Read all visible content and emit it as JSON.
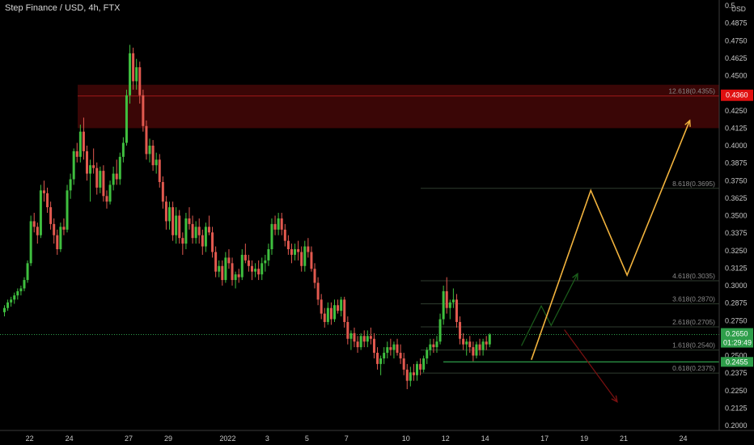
{
  "header": {
    "title": "Step Finance / USD, 4h, FTX"
  },
  "price_axis": {
    "currency": "USD"
  },
  "colors": {
    "up": "#3fbf3f",
    "down": "#e2594f",
    "zone": "#3a0606",
    "forecast": "#f2b33d",
    "red_arrow": "#7a1111",
    "green_arrow": "#1b5e1b",
    "price_badge": "#2e9e4a",
    "target_badge": "#e01010"
  },
  "badges": {
    "target": "0.4360",
    "current_price": "0.2650",
    "countdown": "01:29:49",
    "support": "0.2455"
  },
  "chart_data": {
    "type": "candlestick",
    "title": "Step Finance / USD, 4h, FTX",
    "ylim": [
      0.2,
      0.5
    ],
    "y_ticks": [
      "0.5",
      "0.4875",
      "0.4750",
      "0.4625",
      "0.4500",
      "0.4375",
      "0.4250",
      "0.4125",
      "0.4000",
      "0.3875",
      "0.3750",
      "0.3625",
      "0.3500",
      "0.3375",
      "0.3250",
      "0.3125",
      "0.3000",
      "0.2875",
      "0.2750",
      "0.2625",
      "0.2500",
      "0.2375",
      "0.2250",
      "0.2125",
      "0.2000"
    ],
    "x_ticks": [
      {
        "label": "22",
        "i": 8
      },
      {
        "label": "24",
        "i": 20
      },
      {
        "label": "27",
        "i": 38
      },
      {
        "label": "29",
        "i": 50
      },
      {
        "label": "2022",
        "i": 68
      },
      {
        "label": "3",
        "i": 80
      },
      {
        "label": "5",
        "i": 92
      },
      {
        "label": "7",
        "i": 104
      },
      {
        "label": "10",
        "i": 122
      },
      {
        "label": "12",
        "i": 134
      },
      {
        "label": "14",
        "i": 146
      },
      {
        "label": "17",
        "i": 164
      },
      {
        "label": "19",
        "i": 176
      },
      {
        "label": "21",
        "i": 188
      },
      {
        "label": "24",
        "i": 206
      }
    ],
    "candles": [
      [
        0.281,
        0.286,
        0.278,
        0.284
      ],
      [
        0.284,
        0.29,
        0.282,
        0.288
      ],
      [
        0.288,
        0.292,
        0.285,
        0.29
      ],
      [
        0.29,
        0.295,
        0.287,
        0.293
      ],
      [
        0.293,
        0.298,
        0.29,
        0.296
      ],
      [
        0.296,
        0.3,
        0.293,
        0.298
      ],
      [
        0.298,
        0.306,
        0.296,
        0.304
      ],
      [
        0.304,
        0.318,
        0.302,
        0.316
      ],
      [
        0.316,
        0.35,
        0.314,
        0.346
      ],
      [
        0.346,
        0.352,
        0.338,
        0.342
      ],
      [
        0.342,
        0.345,
        0.33,
        0.336
      ],
      [
        0.336,
        0.372,
        0.334,
        0.368
      ],
      [
        0.368,
        0.375,
        0.36,
        0.366
      ],
      [
        0.366,
        0.37,
        0.352,
        0.356
      ],
      [
        0.356,
        0.36,
        0.34,
        0.344
      ],
      [
        0.344,
        0.348,
        0.33,
        0.336
      ],
      [
        0.336,
        0.34,
        0.322,
        0.326
      ],
      [
        0.326,
        0.345,
        0.324,
        0.342
      ],
      [
        0.342,
        0.348,
        0.336,
        0.34
      ],
      [
        0.34,
        0.372,
        0.338,
        0.368
      ],
      [
        0.368,
        0.38,
        0.362,
        0.376
      ],
      [
        0.376,
        0.398,
        0.372,
        0.396
      ],
      [
        0.396,
        0.402,
        0.388,
        0.392
      ],
      [
        0.392,
        0.415,
        0.388,
        0.41
      ],
      [
        0.41,
        0.42,
        0.39,
        0.396
      ],
      [
        0.396,
        0.4,
        0.375,
        0.38
      ],
      [
        0.38,
        0.39,
        0.36,
        0.386
      ],
      [
        0.386,
        0.398,
        0.38,
        0.384
      ],
      [
        0.384,
        0.388,
        0.365,
        0.37
      ],
      [
        0.37,
        0.385,
        0.366,
        0.382
      ],
      [
        0.382,
        0.386,
        0.36,
        0.364
      ],
      [
        0.364,
        0.368,
        0.355,
        0.36
      ],
      [
        0.36,
        0.375,
        0.358,
        0.372
      ],
      [
        0.372,
        0.385,
        0.368,
        0.38
      ],
      [
        0.38,
        0.39,
        0.372,
        0.376
      ],
      [
        0.376,
        0.395,
        0.372,
        0.392
      ],
      [
        0.392,
        0.406,
        0.388,
        0.402
      ],
      [
        0.402,
        0.44,
        0.4,
        0.436
      ],
      [
        0.436,
        0.472,
        0.43,
        0.466
      ],
      [
        0.466,
        0.47,
        0.44,
        0.446
      ],
      [
        0.446,
        0.462,
        0.44,
        0.456
      ],
      [
        0.456,
        0.46,
        0.43,
        0.436
      ],
      [
        0.436,
        0.44,
        0.41,
        0.414
      ],
      [
        0.414,
        0.418,
        0.39,
        0.394
      ],
      [
        0.394,
        0.405,
        0.388,
        0.4
      ],
      [
        0.4,
        0.404,
        0.382,
        0.386
      ],
      [
        0.386,
        0.395,
        0.38,
        0.39
      ],
      [
        0.39,
        0.394,
        0.37,
        0.374
      ],
      [
        0.374,
        0.378,
        0.355,
        0.36
      ],
      [
        0.36,
        0.364,
        0.34,
        0.346
      ],
      [
        0.346,
        0.36,
        0.34,
        0.356
      ],
      [
        0.356,
        0.36,
        0.332,
        0.336
      ],
      [
        0.336,
        0.356,
        0.33,
        0.35
      ],
      [
        0.35,
        0.354,
        0.33,
        0.334
      ],
      [
        0.334,
        0.338,
        0.322,
        0.33
      ],
      [
        0.33,
        0.352,
        0.326,
        0.348
      ],
      [
        0.348,
        0.356,
        0.34,
        0.344
      ],
      [
        0.344,
        0.35,
        0.33,
        0.334
      ],
      [
        0.334,
        0.346,
        0.33,
        0.342
      ],
      [
        0.342,
        0.348,
        0.33,
        0.336
      ],
      [
        0.336,
        0.34,
        0.322,
        0.328
      ],
      [
        0.328,
        0.345,
        0.324,
        0.342
      ],
      [
        0.342,
        0.35,
        0.336,
        0.338
      ],
      [
        0.338,
        0.342,
        0.32,
        0.324
      ],
      [
        0.324,
        0.328,
        0.306,
        0.31
      ],
      [
        0.31,
        0.318,
        0.306,
        0.314
      ],
      [
        0.314,
        0.318,
        0.3,
        0.304
      ],
      [
        0.304,
        0.324,
        0.302,
        0.32
      ],
      [
        0.32,
        0.326,
        0.312,
        0.316
      ],
      [
        0.316,
        0.32,
        0.3,
        0.304
      ],
      [
        0.304,
        0.31,
        0.298,
        0.308
      ],
      [
        0.308,
        0.312,
        0.302,
        0.306
      ],
      [
        0.306,
        0.326,
        0.304,
        0.322
      ],
      [
        0.322,
        0.33,
        0.316,
        0.318
      ],
      [
        0.318,
        0.322,
        0.31,
        0.314
      ],
      [
        0.314,
        0.318,
        0.304,
        0.31
      ],
      [
        0.31,
        0.316,
        0.306,
        0.312
      ],
      [
        0.312,
        0.318,
        0.304,
        0.308
      ],
      [
        0.308,
        0.32,
        0.304,
        0.316
      ],
      [
        0.316,
        0.322,
        0.31,
        0.318
      ],
      [
        0.318,
        0.33,
        0.314,
        0.326
      ],
      [
        0.326,
        0.348,
        0.322,
        0.344
      ],
      [
        0.344,
        0.35,
        0.336,
        0.34
      ],
      [
        0.34,
        0.352,
        0.336,
        0.348
      ],
      [
        0.348,
        0.352,
        0.336,
        0.34
      ],
      [
        0.34,
        0.344,
        0.328,
        0.332
      ],
      [
        0.332,
        0.336,
        0.322,
        0.326
      ],
      [
        0.326,
        0.33,
        0.316,
        0.322
      ],
      [
        0.322,
        0.33,
        0.318,
        0.326
      ],
      [
        0.326,
        0.332,
        0.318,
        0.324
      ],
      [
        0.324,
        0.328,
        0.31,
        0.314
      ],
      [
        0.314,
        0.332,
        0.31,
        0.328
      ],
      [
        0.328,
        0.334,
        0.32,
        0.324
      ],
      [
        0.324,
        0.328,
        0.31,
        0.312
      ],
      [
        0.312,
        0.316,
        0.298,
        0.302
      ],
      [
        0.302,
        0.306,
        0.286,
        0.29
      ],
      [
        0.29,
        0.294,
        0.276,
        0.28
      ],
      [
        0.28,
        0.284,
        0.27,
        0.274
      ],
      [
        0.274,
        0.288,
        0.272,
        0.284
      ],
      [
        0.284,
        0.288,
        0.272,
        0.276
      ],
      [
        0.276,
        0.29,
        0.274,
        0.286
      ],
      [
        0.286,
        0.29,
        0.28,
        0.282
      ],
      [
        0.282,
        0.292,
        0.278,
        0.29
      ],
      [
        0.29,
        0.292,
        0.27,
        0.274
      ],
      [
        0.274,
        0.278,
        0.258,
        0.262
      ],
      [
        0.262,
        0.268,
        0.254,
        0.266
      ],
      [
        0.266,
        0.27,
        0.256,
        0.26
      ],
      [
        0.26,
        0.264,
        0.252,
        0.256
      ],
      [
        0.256,
        0.266,
        0.254,
        0.264
      ],
      [
        0.264,
        0.268,
        0.256,
        0.26
      ],
      [
        0.26,
        0.268,
        0.256,
        0.264
      ],
      [
        0.264,
        0.27,
        0.258,
        0.262
      ],
      [
        0.262,
        0.266,
        0.248,
        0.252
      ],
      [
        0.252,
        0.256,
        0.24,
        0.244
      ],
      [
        0.244,
        0.25,
        0.236,
        0.248
      ],
      [
        0.248,
        0.256,
        0.244,
        0.252
      ],
      [
        0.252,
        0.26,
        0.248,
        0.256
      ],
      [
        0.256,
        0.262,
        0.25,
        0.254
      ],
      [
        0.254,
        0.26,
        0.248,
        0.258
      ],
      [
        0.258,
        0.262,
        0.25,
        0.252
      ],
      [
        0.252,
        0.258,
        0.244,
        0.248
      ],
      [
        0.248,
        0.252,
        0.236,
        0.24
      ],
      [
        0.24,
        0.244,
        0.226,
        0.232
      ],
      [
        0.232,
        0.242,
        0.228,
        0.238
      ],
      [
        0.238,
        0.244,
        0.232,
        0.236
      ],
      [
        0.236,
        0.246,
        0.232,
        0.244
      ],
      [
        0.244,
        0.248,
        0.236,
        0.24
      ],
      [
        0.24,
        0.25,
        0.238,
        0.248
      ],
      [
        0.248,
        0.256,
        0.244,
        0.254
      ],
      [
        0.254,
        0.262,
        0.25,
        0.258
      ],
      [
        0.258,
        0.262,
        0.252,
        0.256
      ],
      [
        0.256,
        0.264,
        0.252,
        0.26
      ],
      [
        0.26,
        0.28,
        0.258,
        0.276
      ],
      [
        0.276,
        0.3,
        0.272,
        0.296
      ],
      [
        0.296,
        0.306,
        0.28,
        0.284
      ],
      [
        0.284,
        0.29,
        0.276,
        0.288
      ],
      [
        0.288,
        0.298,
        0.284,
        0.29
      ],
      [
        0.29,
        0.294,
        0.27,
        0.274
      ],
      [
        0.274,
        0.278,
        0.258,
        0.262
      ],
      [
        0.262,
        0.266,
        0.254,
        0.258
      ],
      [
        0.258,
        0.262,
        0.25,
        0.26
      ],
      [
        0.26,
        0.264,
        0.252,
        0.256
      ],
      [
        0.256,
        0.26,
        0.246,
        0.25
      ],
      [
        0.25,
        0.26,
        0.248,
        0.258
      ],
      [
        0.258,
        0.262,
        0.25,
        0.254
      ],
      [
        0.254,
        0.262,
        0.25,
        0.26
      ],
      [
        0.26,
        0.264,
        0.254,
        0.258
      ],
      [
        0.258,
        0.266,
        0.256,
        0.265
      ]
    ],
    "resistance_zone": [
      0.4125,
      0.4435
    ],
    "fib_levels": [
      {
        "label": "12.618(0.4355)",
        "value": 0.4355
      },
      {
        "label": "8.618(0.3695)",
        "value": 0.3695
      },
      {
        "label": "4.618(0.3035)",
        "value": 0.3035
      },
      {
        "label": "3.618(0.2870)",
        "value": 0.287
      },
      {
        "label": "2.618(0.2705)",
        "value": 0.2705
      },
      {
        "label": "1.618(0.2540)",
        "value": 0.254
      },
      {
        "label": "0.618(0.2375)",
        "value": 0.2375
      }
    ],
    "current_price": 0.265,
    "support_level": 0.2455,
    "target_level": 0.436,
    "forecast_path": [
      [
        160,
        0.247
      ],
      [
        178,
        0.368
      ],
      [
        189,
        0.3075
      ],
      [
        208,
        0.418
      ]
    ],
    "green_path": [
      [
        157,
        0.257
      ],
      [
        163,
        0.2855
      ],
      [
        166,
        0.2715
      ],
      [
        174,
        0.3085
      ]
    ],
    "red_path": [
      [
        170,
        0.2685
      ],
      [
        186,
        0.217
      ]
    ]
  }
}
